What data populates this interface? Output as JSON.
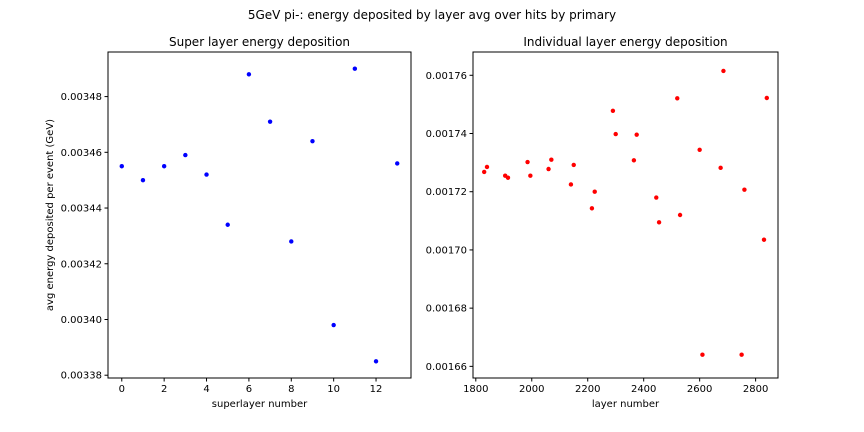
{
  "figure": {
    "suptitle": "5GeV pi-: energy deposited by layer avg over hits by primary"
  },
  "chart_data": [
    {
      "type": "scatter",
      "title": "Super layer energy deposition",
      "xlabel": "superlayer number",
      "ylabel": "avg energy deposited per event (GeV)",
      "xlim": [
        -0.65,
        13.65
      ],
      "ylim": [
        0.003379,
        0.003496
      ],
      "xticks": [
        0,
        2,
        4,
        6,
        8,
        10,
        12
      ],
      "xtick_labels": [
        "0",
        "2",
        "4",
        "6",
        "8",
        "10",
        "12"
      ],
      "yticks": [
        0.00338,
        0.0034,
        0.00342,
        0.00344,
        0.00346,
        0.00348
      ],
      "ytick_labels": [
        "0.00338",
        "0.00340",
        "0.00342",
        "0.00344",
        "0.00346",
        "0.00348"
      ],
      "marker_color": "#0000ff",
      "grid": false,
      "x": [
        0,
        1,
        2,
        3,
        4,
        5,
        6,
        7,
        8,
        9,
        10,
        11,
        12,
        13
      ],
      "y": [
        0.003455,
        0.00345,
        0.003455,
        0.003459,
        0.003452,
        0.003434,
        0.003488,
        0.003471,
        0.003428,
        0.003464,
        0.003398,
        0.00349,
        0.003385,
        0.003456
      ]
    },
    {
      "type": "scatter",
      "title": "Individual layer energy deposition",
      "xlabel": "layer number",
      "ylabel": "",
      "xlim": [
        1790,
        2880
      ],
      "ylim": [
        0.001656,
        0.001768
      ],
      "xticks": [
        1800,
        2000,
        2200,
        2400,
        2600,
        2800
      ],
      "xtick_labels": [
        "1800",
        "2000",
        "2200",
        "2400",
        "2600",
        "2800"
      ],
      "yticks": [
        0.00166,
        0.00168,
        0.0017,
        0.00172,
        0.00174,
        0.00176
      ],
      "ytick_labels": [
        "0.00166",
        "0.00168",
        "0.00170",
        "0.00172",
        "0.00174",
        "0.00176"
      ],
      "marker_color": "#ff0000",
      "grid": false,
      "x": [
        1830,
        1840,
        1905,
        1915,
        1985,
        1995,
        2060,
        2070,
        2140,
        2150,
        2215,
        2225,
        2290,
        2300,
        2365,
        2375,
        2445,
        2455,
        2520,
        2530,
        2600,
        2610,
        2675,
        2685,
        2750,
        2760,
        2830,
        2840
      ],
      "y": [
        0.0017268,
        0.0017285,
        0.0017255,
        0.0017248,
        0.0017302,
        0.0017255,
        0.0017278,
        0.001731,
        0.0017225,
        0.0017292,
        0.0017143,
        0.00172,
        0.0017478,
        0.0017398,
        0.0017308,
        0.0017396,
        0.001718,
        0.0017095,
        0.0017521,
        0.001712,
        0.0017344,
        0.001664,
        0.0017282,
        0.0017615,
        0.001664,
        0.0017207,
        0.0017035,
        0.0017522
      ]
    }
  ]
}
